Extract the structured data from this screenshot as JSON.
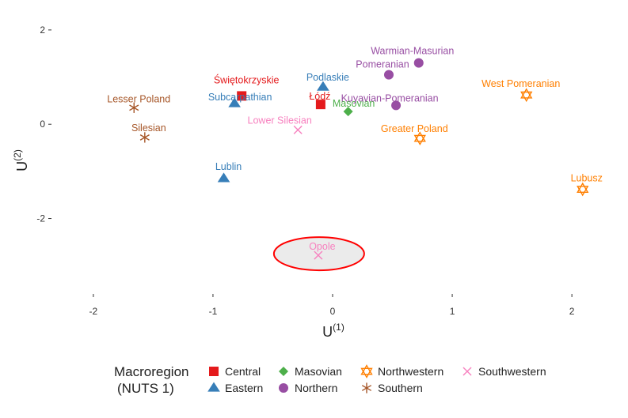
{
  "chart_data": {
    "type": "scatter",
    "xlabel": "U",
    "xlabel_sup": "(1)",
    "ylabel": "U",
    "ylabel_sup": "(2)",
    "xlim": [
      -2.35,
      2.35
    ],
    "ylim": [
      -3.6,
      2.3
    ],
    "xticks": [
      -2,
      -1,
      0,
      1,
      2
    ],
    "xtick_labels": [
      "-2",
      "-1",
      "0",
      "1",
      "2"
    ],
    "yticks": [
      -2,
      0,
      2
    ],
    "ytick_labels": [
      "-2",
      "0",
      "2"
    ],
    "grid": false,
    "legend_position": "bottom",
    "legend_title_lines": [
      "Macroregion",
      "(NUTS 1)"
    ],
    "series": [
      {
        "name": "Central",
        "color": "#e41a1c",
        "marker": "square",
        "points": [
          {
            "label": "Świętokrzyskie",
            "x": -0.76,
            "y": 0.6
          },
          {
            "label": "Łódź",
            "x": -0.1,
            "y": 0.42
          }
        ]
      },
      {
        "name": "Eastern",
        "color": "#377eb8",
        "marker": "triangle",
        "points": [
          {
            "label": "Subcarpathian",
            "x": -0.82,
            "y": 0.44
          },
          {
            "label": "Podlaskie",
            "x": -0.08,
            "y": 0.79
          },
          {
            "label": "Lublin",
            "x": -0.91,
            "y": -1.15
          }
        ]
      },
      {
        "name": "Masovian",
        "color": "#4daf4a",
        "marker": "diamond",
        "points": [
          {
            "label": "Masovian",
            "x": 0.13,
            "y": 0.27
          }
        ]
      },
      {
        "name": "Northern",
        "color": "#984ea3",
        "marker": "circle",
        "points": [
          {
            "label": "Warmian-Masurian",
            "x": 0.72,
            "y": 1.3
          },
          {
            "label": "Pomeranian",
            "x": 0.47,
            "y": 1.05
          },
          {
            "label": "Kuyavian-Pomeranian",
            "x": 0.53,
            "y": 0.4
          }
        ]
      },
      {
        "name": "Northwestern",
        "color": "#ff7f00",
        "marker": "star6",
        "points": [
          {
            "label": "West Pomeranian",
            "x": 1.62,
            "y": 0.62
          },
          {
            "label": "Greater Poland",
            "x": 0.73,
            "y": -0.3
          },
          {
            "label": "Lubusz",
            "x": 2.09,
            "y": -1.38
          }
        ]
      },
      {
        "name": "Southern",
        "color": "#a65628",
        "marker": "asterisk",
        "points": [
          {
            "label": "Lesser Poland",
            "x": -1.66,
            "y": 0.35
          },
          {
            "label": "Silesian",
            "x": -1.57,
            "y": -0.28
          }
        ]
      },
      {
        "name": "Southwestern",
        "color": "#f781bf",
        "marker": "x",
        "points": [
          {
            "label": "Lower Silesian",
            "x": -0.29,
            "y": -0.12
          },
          {
            "label": "Opole",
            "x": -0.12,
            "y": -2.78
          }
        ]
      }
    ],
    "highlight": {
      "label": "Opole",
      "color": "#ff0000"
    }
  }
}
